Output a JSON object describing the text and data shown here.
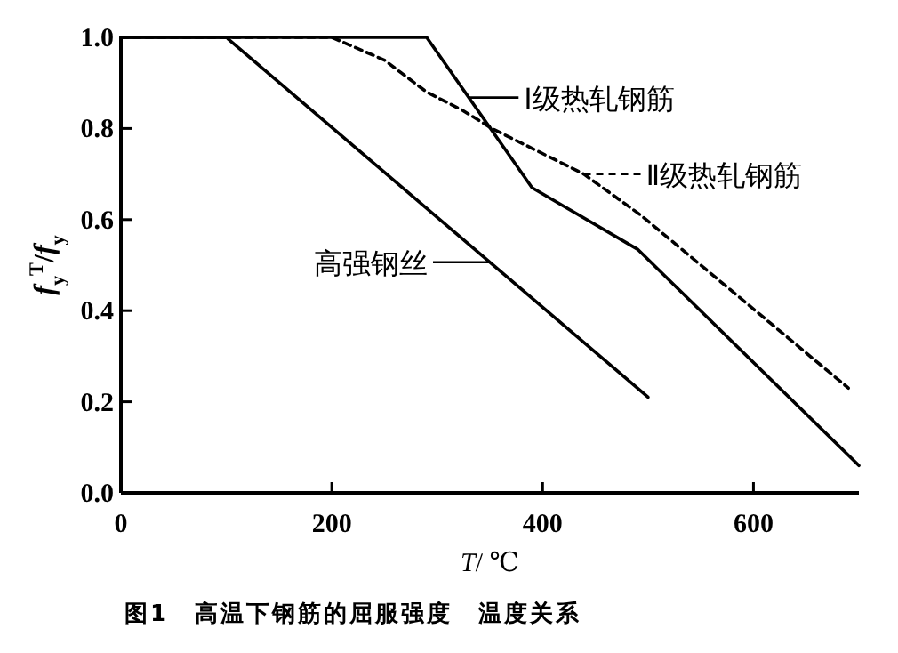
{
  "chart_data": {
    "type": "line",
    "title": "图1　高温下钢筋的屈服强度　温度关系",
    "xlabel": "*T*/ ℃",
    "ylabel": "*f*$_{y}$$^{T}$/*f*$_{y}$",
    "series": [
      {
        "name": "Ⅰ级热轧钢筋",
        "color": "#000000",
        "line_style": "solid",
        "x": [
          0,
          290,
          390,
          490,
          700
        ],
        "values": [
          1.0,
          1.0,
          0.67,
          0.535,
          0.06
        ]
      },
      {
        "name": "Ⅱ级热轧钢筋",
        "color": "#000000",
        "line_style": "dashed",
        "x": [
          0,
          200,
          250,
          290,
          324,
          352,
          439,
          493,
          690
        ],
        "values": [
          1.0,
          1.0,
          0.95,
          0.88,
          0.84,
          0.8,
          0.7,
          0.61,
          0.23
        ]
      },
      {
        "name": "高强钢丝",
        "color": "#000000",
        "line_style": "solid",
        "x": [
          0,
          100,
          500
        ],
        "values": [
          1.0,
          1.0,
          0.21
        ]
      }
    ],
    "xlim": [
      0,
      700
    ],
    "ylim": [
      0,
      1.0
    ],
    "xticks": [
      0,
      200,
      400,
      600
    ],
    "yticks": [
      {
        "value": 0,
        "label": "0.0"
      },
      {
        "value": 0.2,
        "label": "0.2"
      },
      {
        "value": 0.4,
        "label": "0.4"
      },
      {
        "value": 0.6,
        "label": "0.6"
      },
      {
        "value": 0.8,
        "label": "0.8"
      },
      {
        "value": 1.0,
        "label": "1.0"
      }
    ],
    "grid": false,
    "legend": "right"
  }
}
